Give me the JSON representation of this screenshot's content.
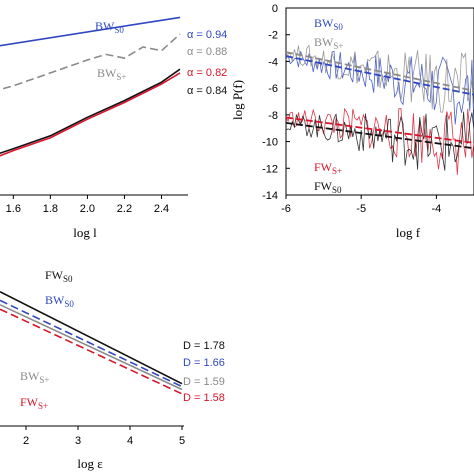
{
  "colors": {
    "black": "#111111",
    "blue": "#2f47c0",
    "gray": "#8a8a8a",
    "red": "#d8142a"
  },
  "chart_data": [
    {
      "type": "line",
      "xlabel": "log l",
      "ylabel": "",
      "xlim": [
        1.42,
        2.5
      ],
      "ylim": [
        0,
        10
      ],
      "xticks": [
        "1.6",
        "1.8",
        "2.0",
        "2.2",
        "2.4"
      ],
      "yticks": [],
      "series": [
        {
          "name": "BW",
          "sub": "S0",
          "color": "blue",
          "x": [
            1.42,
            2.5
          ],
          "y": [
            7.9,
            9.6
          ]
        },
        {
          "name": "BW",
          "sub": "S+",
          "color": "gray",
          "x": [
            1.42,
            1.6,
            1.8,
            2.0,
            2.1,
            2.2,
            2.3,
            2.4,
            2.5
          ],
          "y": [
            5.4,
            5.9,
            6.6,
            7.3,
            7.6,
            7.4,
            8.0,
            7.8,
            8.7
          ]
        },
        {
          "name": "",
          "sub": "",
          "color": "black",
          "x": [
            1.42,
            1.6,
            1.8,
            2.0,
            2.2,
            2.4,
            2.5
          ],
          "y": [
            1.9,
            2.5,
            3.2,
            4.2,
            5.1,
            6.1,
            6.8
          ]
        },
        {
          "name": "",
          "sub": "",
          "color": "red",
          "x": [
            1.42,
            1.6,
            1.8,
            2.0,
            2.2,
            2.4,
            2.5
          ],
          "y": [
            1.7,
            2.4,
            3.1,
            4.1,
            5.0,
            6.0,
            6.6
          ]
        }
      ],
      "annotations": [
        "α = 0.94",
        "α = 0.88",
        "α = 0.82",
        "α = 0.84"
      ]
    },
    {
      "type": "line",
      "xlabel": "log f",
      "ylabel": "log P(f)",
      "xlim": [
        -6,
        -3.5
      ],
      "ylim": [
        -14,
        0
      ],
      "xticks": [
        "-6",
        "-5",
        "-4"
      ],
      "yticks": [
        "0",
        "-2",
        "-4",
        "-6",
        "-8",
        "-10",
        "-12",
        "-14"
      ],
      "series": [
        {
          "name": "BW",
          "sub": "S0",
          "color": "blue",
          "x": [
            -6,
            -3.5
          ],
          "y": [
            -3.6,
            -6.5
          ]
        },
        {
          "name": "BW",
          "sub": "S+",
          "color": "gray",
          "x": [
            -6,
            -3.5
          ],
          "y": [
            -3.3,
            -6.2
          ]
        },
        {
          "name": "FW",
          "sub": "S+",
          "color": "red",
          "x": [
            -6,
            -3.5
          ],
          "y": [
            -8.2,
            -10.1
          ]
        },
        {
          "name": "FW",
          "sub": "S0",
          "color": "black",
          "x": [
            -6,
            -3.5
          ],
          "y": [
            -8.6,
            -10.5
          ]
        }
      ]
    },
    {
      "type": "line",
      "xlabel": "log ε",
      "ylabel": "",
      "xlim": [
        1.5,
        5
      ],
      "ylim": [
        0,
        10
      ],
      "xticks": [
        "2",
        "3",
        "4",
        "5"
      ],
      "yticks": [],
      "series": [
        {
          "name": "FW",
          "sub": "S0",
          "color": "black",
          "x": [
            1.5,
            5
          ],
          "y": [
            9.2,
            2.9
          ]
        },
        {
          "name": "BW",
          "sub": "S0",
          "color": "blue",
          "x": [
            1.5,
            5
          ],
          "y": [
            8.6,
            2.7
          ]
        },
        {
          "name": "BW",
          "sub": "S+",
          "color": "gray",
          "x": [
            1.5,
            5
          ],
          "y": [
            8.3,
            2.5
          ]
        },
        {
          "name": "FW",
          "sub": "S+",
          "color": "red",
          "x": [
            1.5,
            5
          ],
          "y": [
            8.0,
            2.2
          ]
        }
      ],
      "annotations": [
        "D = 1.78",
        "D = 1.66",
        "D = 1.59",
        "D = 1.58"
      ]
    }
  ]
}
